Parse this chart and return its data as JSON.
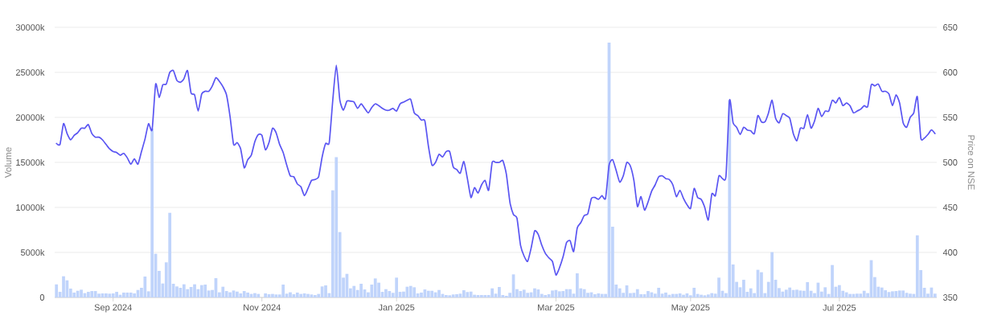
{
  "chart_data": {
    "type": "bar",
    "ylabel": "Volume",
    "y2label": "Price on NSE",
    "grid": "y",
    "categories": [
      null,
      null,
      null,
      null,
      null,
      null,
      null,
      null,
      null,
      null,
      null,
      null,
      null,
      null,
      null,
      null,
      "Sep 2024",
      null,
      null,
      null,
      null,
      null,
      null,
      null,
      null,
      null,
      null,
      null,
      null,
      null,
      null,
      null,
      null,
      null,
      null,
      null,
      null,
      null,
      null,
      null,
      null,
      null,
      null,
      null,
      null,
      null,
      null,
      null,
      null,
      null,
      null,
      null,
      null,
      null,
      null,
      null,
      null,
      null,
      "Nov 2024",
      null,
      null,
      null,
      null,
      null,
      null,
      null,
      null,
      null,
      null,
      null,
      null,
      null,
      null,
      null,
      null,
      null,
      null,
      null,
      null,
      null,
      null,
      null,
      null,
      null,
      null,
      null,
      null,
      null,
      null,
      null,
      null,
      null,
      null,
      null,
      null,
      null,
      "Jan 2025",
      null,
      null,
      null,
      null,
      null,
      null,
      null,
      null,
      null,
      null,
      null,
      null,
      null,
      null,
      null,
      null,
      null,
      null,
      null,
      null,
      null,
      null,
      null,
      null,
      null,
      null,
      null,
      null,
      null,
      null,
      null,
      null,
      null,
      null,
      null,
      null,
      null,
      null,
      null,
      null,
      null,
      null,
      null,
      null,
      "Mar 2025",
      null,
      null,
      null,
      null,
      null,
      null,
      null,
      null,
      null,
      null,
      null,
      null,
      null,
      null,
      null,
      null,
      null,
      null,
      null,
      null,
      null,
      null,
      null,
      null,
      null,
      null,
      null,
      null,
      null,
      null,
      null,
      null,
      null,
      null,
      null,
      null,
      null,
      "May 2025",
      null,
      null,
      null,
      null,
      null,
      null,
      null,
      null,
      null,
      null,
      null,
      null,
      null,
      null,
      null,
      null,
      null,
      null,
      null,
      null,
      null,
      null,
      null,
      null,
      null,
      null,
      null,
      null,
      null,
      null,
      null,
      null,
      null,
      null,
      null,
      null,
      null,
      null,
      null,
      null,
      null,
      "Jul 2025",
      null,
      null,
      null,
      null,
      null,
      null,
      null,
      null,
      null,
      null,
      null,
      null,
      null,
      null,
      null,
      null,
      null,
      null,
      null,
      null,
      null,
      null,
      null,
      null,
      null,
      null,
      null
    ],
    "series": [
      {
        "color": "#c0d4fb",
        "values": [
          1450,
          620,
          2350,
          1900,
          980,
          540,
          740,
          860,
          480,
          620,
          710,
          710,
          420,
          450,
          450,
          420,
          450,
          620,
          300,
          540,
          540,
          540,
          450,
          830,
          1070,
          2320,
          680,
          18750,
          4850,
          2950,
          1550,
          3900,
          9400,
          1520,
          1220,
          1070,
          1460,
          920,
          1160,
          1460,
          920,
          1370,
          1430,
          770,
          830,
          2140,
          570,
          1190,
          710,
          570,
          770,
          650,
          450,
          710,
          540,
          390,
          480,
          390,
          null,
          450,
          360,
          390,
          330,
          330,
          1430,
          420,
          570,
          360,
          540,
          390,
          450,
          390,
          330,
          270,
          390,
          1220,
          1340,
          480,
          11900,
          15570,
          7260,
          2200,
          2620,
          1010,
          1280,
          830,
          1520,
          890,
          570,
          1430,
          2110,
          1640,
          620,
          920,
          710,
          510,
          2200,
          620,
          650,
          1190,
          1280,
          1130,
          450,
          540,
          890,
          740,
          740,
          570,
          830,
          390,
          270,
          240,
          330,
          360,
          420,
          800,
          600,
          650,
          300,
          270,
          270,
          270,
          270,
          1010,
          420,
          1160,
          270,
          180,
          510,
          2560,
          920,
          710,
          860,
          510,
          570,
          1010,
          890,
          390,
          270,
          360,
          770,
          830,
          680,
          710,
          920,
          920,
          420,
          2680,
          1010,
          920,
          510,
          570,
          360,
          450,
          390,
          390,
          28300,
          7860,
          1430,
          1010,
          510,
          1340,
          480,
          510,
          920,
          360,
          360,
          710,
          570,
          420,
          1070,
          420,
          540,
          300,
          390,
          390,
          450,
          300,
          450,
          240,
          1070,
          390,
          300,
          240,
          330,
          480,
          420,
          2200,
          740,
          480,
          21900,
          3660,
          1730,
          1130,
          1960,
          620,
          1010,
          480,
          3070,
          2800,
          480,
          1730,
          5030,
          1960,
          1040,
          650,
          860,
          1100,
          830,
          860,
          770,
          740,
          1700,
          740,
          480,
          1640,
          650,
          1130,
          390,
          3600,
          1190,
          1370,
          740,
          570,
          390,
          390,
          420,
          420,
          740,
          480,
          4140,
          2260,
          1190,
          1100,
          800,
          600,
          680,
          710,
          770,
          770,
          510,
          420,
          390,
          6900,
          3040,
          1070,
          420,
          1100,
          420
        ]
      },
      {
        "type": "line",
        "axis": "y2",
        "color": "#5a55f2",
        "values": [
          521,
          520,
          543,
          532,
          525,
          530,
          533,
          538,
          538,
          542,
          532,
          528,
          528,
          525,
          520,
          515,
          512,
          511,
          508,
          510,
          505,
          498,
          504,
          498,
          512,
          526,
          543,
          536,
          587,
          572,
          586,
          587,
          600,
          602,
          591,
          589,
          593,
          602,
          577,
          575,
          557,
          576,
          579,
          579,
          585,
          594,
          590,
          584,
          575,
          551,
          520,
          522,
          515,
          494,
          503,
          508,
          523,
          531,
          530,
          514,
          522,
          538,
          533,
          520,
          511,
          497,
          485,
          484,
          476,
          473,
          463,
          471,
          480,
          481,
          484,
          506,
          521,
          522,
          569,
          608,
          569,
          558,
          568,
          568,
          567,
          560,
          565,
          560,
          555,
          561,
          565,
          563,
          560,
          558,
          558,
          560,
          557,
          565,
          567,
          569,
          570,
          555,
          552,
          547,
          546,
          518,
          497,
          500,
          509,
          506,
          512,
          512,
          495,
          492,
          488,
          501,
          482,
          461,
          472,
          466,
          475,
          480,
          469,
          500,
          500,
          500,
          502,
          487,
          456,
          442,
          438,
          408,
          396,
          390,
          405,
          424,
          420,
          408,
          399,
          394,
          390,
          375,
          383,
          395,
          411,
          413,
          401,
          427,
          433,
          441,
          443,
          460,
          461,
          459,
          463,
          460,
          497,
          503,
          491,
          478,
          485,
          500,
          496,
          480,
          451,
          462,
          447,
          456,
          468,
          475,
          484,
          485,
          482,
          481,
          475,
          462,
          469,
          460,
          453,
          449,
          471,
          461,
          459,
          450,
          436,
          465,
          463,
          485,
          482,
          485,
          569,
          544,
          539,
          531,
          539,
          536,
          535,
          532,
          552,
          545,
          545,
          555,
          569,
          549,
          544,
          554,
          552,
          549,
          532,
          524,
          538,
          538,
          553,
          538,
          546,
          560,
          551,
          557,
          557,
          569,
          566,
          572,
          563,
          566,
          563,
          555,
          557,
          559,
          563,
          562,
          586,
          585,
          587,
          579,
          579,
          576,
          563,
          575,
          566,
          544,
          539,
          550,
          555,
          573,
          527,
          527,
          531,
          536,
          532
        ]
      }
    ],
    "ylim": [
      0,
      30000
    ],
    "yticks": [
      0,
      {
        "value": 5000,
        "label": "5000k"
      },
      {
        "value": 10000,
        "label": "10000k"
      },
      {
        "value": 15000,
        "label": "15000k"
      },
      {
        "value": 20000,
        "label": "20000k"
      },
      {
        "value": 25000,
        "label": "25000k"
      },
      {
        "value": 30000,
        "label": "30000k"
      }
    ],
    "y2lim": [
      350,
      650
    ],
    "y2ticks": [
      350,
      400,
      450,
      500,
      550,
      600,
      650
    ]
  }
}
